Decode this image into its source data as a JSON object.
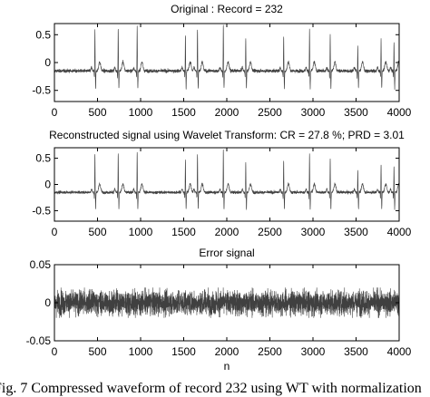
{
  "caption": "Fig. 7 Compressed waveform of record 232 using WT with normalization",
  "colors": {
    "axes": "#000000",
    "signal": "#404040",
    "background": "#ffffff"
  },
  "chart_data": [
    {
      "type": "line",
      "title": "Original : Record = 232",
      "xlabel": "",
      "ylabel": "",
      "xlim": [
        0,
        4000
      ],
      "ylim": [
        -0.7,
        0.7
      ],
      "xticks": [
        0,
        500,
        1000,
        1500,
        2000,
        2500,
        3000,
        3500,
        4000
      ],
      "yticks": [
        0.5,
        0,
        -0.5
      ],
      "ytick_labels": [
        "0.5",
        "0",
        "-0.5"
      ],
      "grid": false,
      "signal": {
        "baseline": -0.15,
        "noise_amplitude": 0.03,
        "beats": [
          {
            "x": 470,
            "peak": 0.6
          },
          {
            "x": 740,
            "peak": 0.62
          },
          {
            "x": 960,
            "peak": 0.64
          },
          {
            "x": 1520,
            "peak": 0.5
          },
          {
            "x": 1660,
            "peak": 0.62
          },
          {
            "x": 1960,
            "peak": 0.68
          },
          {
            "x": 2220,
            "peak": 0.44
          },
          {
            "x": 2660,
            "peak": 0.48
          },
          {
            "x": 2960,
            "peak": 0.6
          },
          {
            "x": 3200,
            "peak": 0.5
          },
          {
            "x": 3520,
            "peak": 0.3
          },
          {
            "x": 3790,
            "peak": 0.42
          },
          {
            "x": 3940,
            "peak": 0.36
          }
        ]
      }
    },
    {
      "type": "line",
      "title": "Reconstructed signal using Wavelet Transform: CR = 27.8 %; PRD = 3.01",
      "xlabel": "",
      "ylabel": "",
      "xlim": [
        0,
        4000
      ],
      "ylim": [
        -0.7,
        0.7
      ],
      "xticks": [
        0,
        500,
        1000,
        1500,
        2000,
        2500,
        3000,
        3500,
        4000
      ],
      "yticks": [
        0.5,
        0,
        -0.5
      ],
      "ytick_labels": [
        "0.5",
        "0",
        "-0.5"
      ],
      "grid": false,
      "signal": {
        "baseline": -0.15,
        "noise_amplitude": 0.028,
        "beats": [
          {
            "x": 470,
            "peak": 0.58
          },
          {
            "x": 740,
            "peak": 0.6
          },
          {
            "x": 960,
            "peak": 0.62
          },
          {
            "x": 1520,
            "peak": 0.48
          },
          {
            "x": 1660,
            "peak": 0.6
          },
          {
            "x": 1960,
            "peak": 0.66
          },
          {
            "x": 2220,
            "peak": 0.42
          },
          {
            "x": 2660,
            "peak": 0.46
          },
          {
            "x": 2960,
            "peak": 0.58
          },
          {
            "x": 3200,
            "peak": 0.48
          },
          {
            "x": 3520,
            "peak": 0.28
          },
          {
            "x": 3790,
            "peak": 0.4
          },
          {
            "x": 3940,
            "peak": 0.34
          }
        ]
      }
    },
    {
      "type": "line",
      "title": "Error signal",
      "xlabel": "n",
      "ylabel": "",
      "xlim": [
        0,
        4000
      ],
      "ylim": [
        -0.05,
        0.05
      ],
      "xticks": [
        0,
        500,
        1000,
        1500,
        2000,
        2500,
        3000,
        3500,
        4000
      ],
      "yticks": [
        0.05,
        0,
        -0.05
      ],
      "ytick_labels": [
        "0.05",
        "0",
        "-0.05"
      ],
      "grid": false,
      "signal": {
        "kind": "noise",
        "std": 0.008,
        "max_abs": 0.02
      }
    }
  ]
}
